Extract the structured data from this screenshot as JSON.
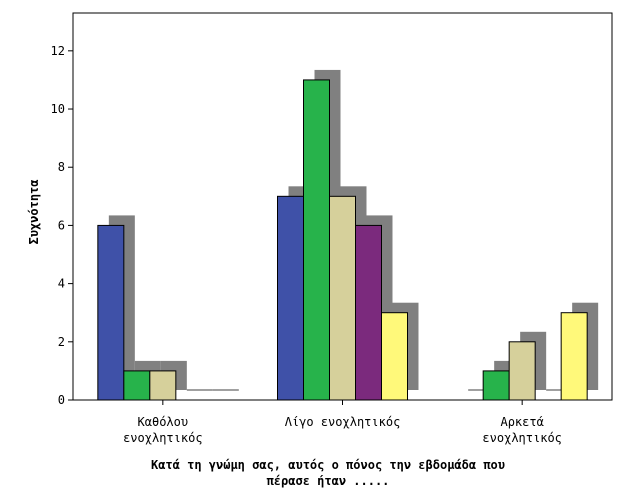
{
  "chart_data": {
    "type": "bar",
    "title": "",
    "ylabel": "Συχνότητα",
    "xlabel_lines": [
      "Κατά τη γνώμη σας, αυτός ο πόνος την εβδομάδα που",
      "πέρασε ήταν ....."
    ],
    "ylim": [
      0,
      13.3
    ],
    "yticks": [
      0,
      2,
      4,
      6,
      8,
      10,
      12
    ],
    "grid": false,
    "legend": "none",
    "categories": [
      {
        "lines": [
          "Καθόλου",
          "ενοχλητικός"
        ]
      },
      {
        "lines": [
          "Λίγο ενοχλητικός"
        ]
      },
      {
        "lines": [
          "Αρκετά",
          "ενοχλητικός"
        ]
      }
    ],
    "series": [
      {
        "color": "#3f51a8",
        "values": [
          6,
          7,
          0
        ]
      },
      {
        "color": "#27b34b",
        "values": [
          1,
          11,
          1
        ]
      },
      {
        "color": "#d6d09b",
        "values": [
          1,
          7,
          2
        ]
      },
      {
        "color": "#7b2a7d",
        "values": [
          0,
          6,
          0
        ]
      },
      {
        "color": "#fff97a",
        "values": [
          0,
          3,
          3
        ]
      }
    ],
    "shadow_color": "#808080"
  }
}
